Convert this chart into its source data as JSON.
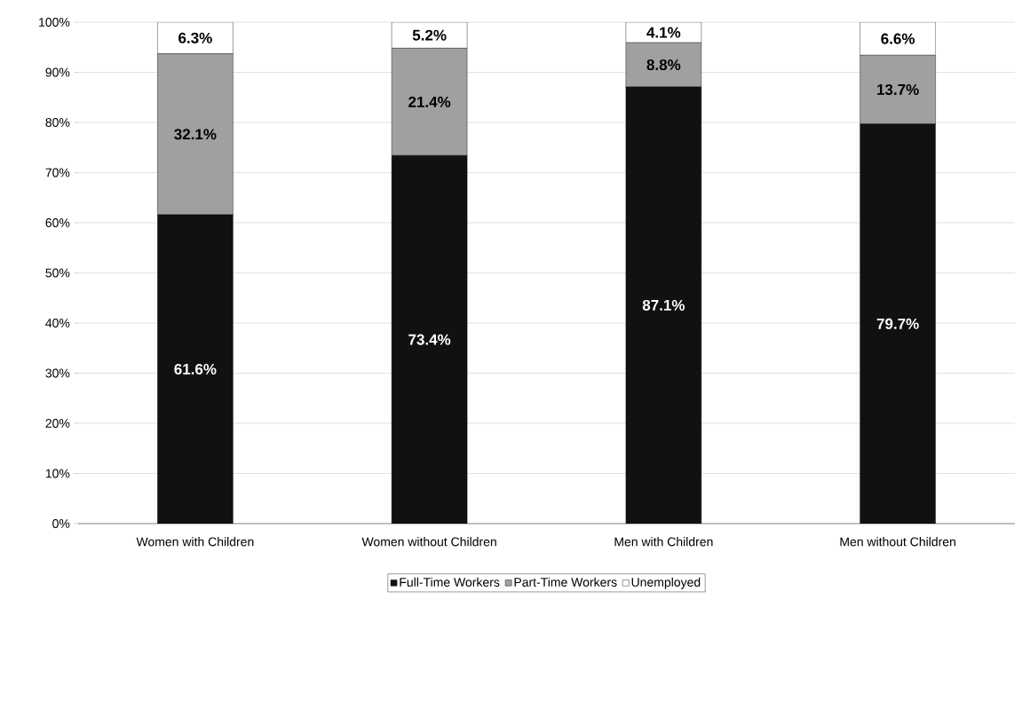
{
  "chart_data": {
    "type": "bar",
    "stacked": true,
    "categories": [
      "Women with Children",
      "Women without Children",
      "Men with Children",
      "Men without Children"
    ],
    "series": [
      {
        "name": "Full-Time Workers",
        "color": "#111111",
        "values": [
          61.6,
          73.4,
          87.1,
          79.7
        ],
        "value_labels": [
          "61.6%",
          "73.4%",
          "87.1%",
          "79.7%"
        ]
      },
      {
        "name": "Part-Time Workers",
        "color": "#a0a0a0",
        "values": [
          32.1,
          21.4,
          8.8,
          13.7
        ],
        "value_labels": [
          "32.1%",
          "21.4%",
          "8.8%",
          "13.7%"
        ]
      },
      {
        "name": "Unemployed",
        "color": "#ffffff",
        "values": [
          6.3,
          5.2,
          4.1,
          6.6
        ],
        "value_labels": [
          "6.3%",
          "5.2%",
          "4.1%",
          "6.6%"
        ]
      }
    ],
    "ylim": [
      0,
      100
    ],
    "yticks": [
      {
        "value": 0,
        "label": "0%"
      },
      {
        "value": 10,
        "label": "10%"
      },
      {
        "value": 20,
        "label": "20%"
      },
      {
        "value": 30,
        "label": "30%"
      },
      {
        "value": 40,
        "label": "40%"
      },
      {
        "value": 50,
        "label": "50%"
      },
      {
        "value": 60,
        "label": "60%"
      },
      {
        "value": 70,
        "label": "70%"
      },
      {
        "value": 80,
        "label": "80%"
      },
      {
        "value": 90,
        "label": "90%"
      },
      {
        "value": 100,
        "label": "100%"
      }
    ],
    "grid": "y",
    "legend": "bottom"
  }
}
